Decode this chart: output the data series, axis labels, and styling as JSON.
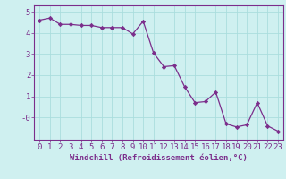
{
  "x": [
    0,
    1,
    2,
    3,
    4,
    5,
    6,
    7,
    8,
    9,
    10,
    11,
    12,
    13,
    14,
    15,
    16,
    17,
    18,
    19,
    20,
    21,
    22,
    23
  ],
  "y": [
    4.6,
    4.7,
    4.4,
    4.4,
    4.35,
    4.35,
    4.25,
    4.25,
    4.25,
    3.95,
    4.55,
    3.05,
    2.4,
    2.45,
    1.45,
    0.7,
    0.75,
    1.2,
    -0.3,
    -0.45,
    -0.35,
    0.7,
    -0.4,
    -0.65
  ],
  "line_color": "#7b2d8b",
  "marker": "D",
  "marker_size": 2.2,
  "background_color": "#cff0f0",
  "grid_color": "#aadddd",
  "xlabel": "Windchill (Refroidissement éolien,°C)",
  "xlim": [
    -0.5,
    23.5
  ],
  "ylim": [
    -1.05,
    5.3
  ],
  "ytick_vals": [
    5,
    4,
    3,
    2,
    1,
    0
  ],
  "ytick_labels": [
    "5",
    "4",
    "3",
    "2",
    "1",
    "-0"
  ],
  "xticks": [
    0,
    1,
    2,
    3,
    4,
    5,
    6,
    7,
    8,
    9,
    10,
    11,
    12,
    13,
    14,
    15,
    16,
    17,
    18,
    19,
    20,
    21,
    22,
    23
  ],
  "axis_color": "#7b2d8b",
  "tick_color": "#7b2d8b",
  "xlabel_fontsize": 6.5,
  "tick_fontsize": 6.5
}
